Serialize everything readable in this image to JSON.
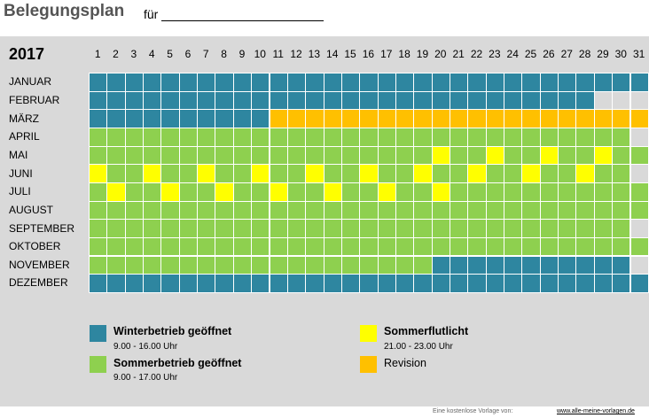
{
  "header": {
    "title": "Belegungsplan",
    "for_label": "für"
  },
  "plan": {
    "year": "2017",
    "days": [
      "1",
      "2",
      "3",
      "4",
      "5",
      "6",
      "7",
      "8",
      "9",
      "10",
      "11",
      "12",
      "13",
      "14",
      "15",
      "16",
      "17",
      "18",
      "19",
      "20",
      "21",
      "22",
      "23",
      "24",
      "25",
      "26",
      "27",
      "28",
      "29",
      "30",
      "31"
    ],
    "colors": {
      "winter": "#2e86a0",
      "summer": "#8ed04f",
      "flutlicht": "#ffff00",
      "revision": "#ffc000",
      "empty": "#d9d9d9"
    },
    "months": [
      {
        "name": "JANUAR",
        "cells": "WWWWWWWWWWWWWWWWWWWWWWWWWWWWWWW"
      },
      {
        "name": "FEBRUAR",
        "cells": "WWWWWWWWWWWWWWWWWWWWWWWWWWWW---"
      },
      {
        "name": "MÄRZ",
        "cells": "WWWWWWWWWWRRRRRRRRRRRRRRRRRRRRR"
      },
      {
        "name": "APRIL",
        "cells": "SSSSSSSSSSSSSSSSSSSSSSSSSSSSSS-"
      },
      {
        "name": "MAI",
        "cells": "SSSSSSSSSSSSSSSSSSSYSSYSSYSSYSS"
      },
      {
        "name": "JUNI",
        "cells": "YSSYSSYSSYSSYSSYSSYSSYSSYSSYSS-"
      },
      {
        "name": "JULI",
        "cells": "SYSSYSSYSSYSSYSSYSSYSSSSSSSSSSS"
      },
      {
        "name": "AUGUST",
        "cells": "SSSSSSSSSSSSSSSSSSSSSSSSSSSSSSS"
      },
      {
        "name": "SEPTEMBER",
        "cells": "SSSSSSSSSSSSSSSSSSSSSSSSSSSSSS-"
      },
      {
        "name": "OKTOBER",
        "cells": "SSSSSSSSSSSSSSSSSSSSSSSSSSSSSSS"
      },
      {
        "name": "NOVEMBER",
        "cells": "SSSSSSSSSSSSSSSSSSSWWWWWWWWWWW-"
      },
      {
        "name": "DEZEMBER",
        "cells": "WWWWWWWWWWWWWWWWWWWWWWWWWWWWWWW"
      }
    ]
  },
  "legend": {
    "winter": {
      "title": "Winterbetrieb geöffnet",
      "hours": "9.00 - 16.00 Uhr",
      "color": "#2e86a0"
    },
    "summer": {
      "title": "Sommerbetrieb geöffnet",
      "hours": "9.00 - 17.00 Uhr",
      "color": "#8ed04f"
    },
    "flutlicht": {
      "title": "Sommerflutlicht",
      "hours": "21.00 - 23.00 Uhr",
      "color": "#ffff00"
    },
    "revision": {
      "title": "Revision",
      "color": "#ffc000"
    }
  },
  "footer": {
    "text": "Eine kostenlose Vorlage von:",
    "link": "www.alle-meine-vorlagen.de"
  }
}
